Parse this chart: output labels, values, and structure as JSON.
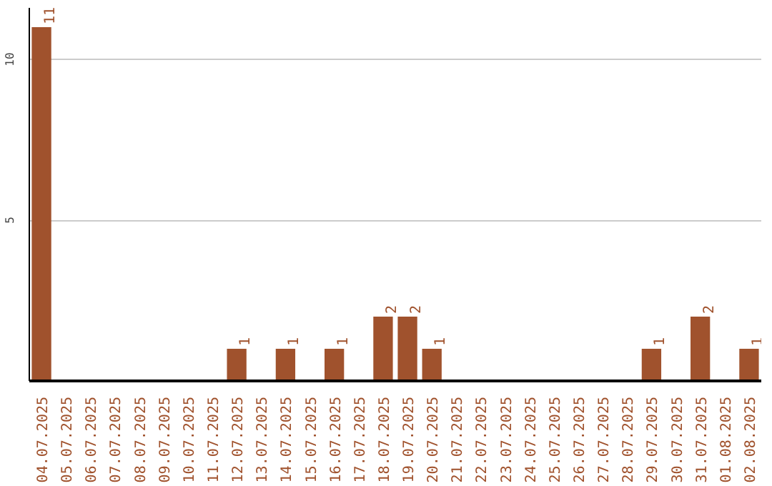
{
  "chart_data": {
    "type": "bar",
    "categories": [
      "04.07.2025",
      "05.07.2025",
      "06.07.2025",
      "07.07.2025",
      "08.07.2025",
      "09.07.2025",
      "10.07.2025",
      "11.07.2025",
      "12.07.2025",
      "13.07.2025",
      "14.07.2025",
      "15.07.2025",
      "16.07.2025",
      "17.07.2025",
      "18.07.2025",
      "19.07.2025",
      "20.07.2025",
      "21.07.2025",
      "22.07.2025",
      "23.07.2025",
      "24.07.2025",
      "25.07.2025",
      "26.07.2025",
      "27.07.2025",
      "28.07.2025",
      "29.07.2025",
      "30.07.2025",
      "31.07.2025",
      "01.08.2025",
      "02.08.2025"
    ],
    "values": [
      11,
      0,
      0,
      0,
      0,
      0,
      0,
      0,
      1,
      0,
      1,
      0,
      1,
      0,
      2,
      2,
      1,
      0,
      0,
      0,
      0,
      0,
      0,
      0,
      0,
      1,
      0,
      2,
      0,
      1
    ],
    "value_labels": [
      "11",
      null,
      null,
      null,
      null,
      null,
      null,
      null,
      "1",
      null,
      "1",
      null,
      "1",
      null,
      "2",
      "2",
      "1",
      null,
      null,
      null,
      null,
      null,
      null,
      null,
      null,
      "1",
      null,
      "2",
      null,
      "1"
    ],
    "color": "#a0522d",
    "ylim": [
      0,
      11.6
    ],
    "yticks": [
      {
        "value": 0,
        "label": null
      },
      5,
      10
    ],
    "grid": "y"
  }
}
